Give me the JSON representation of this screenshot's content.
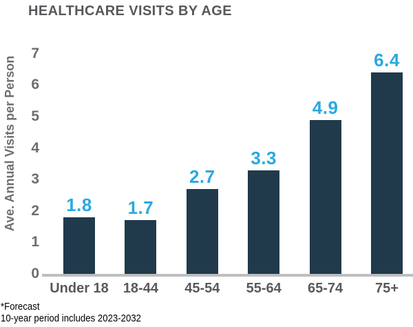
{
  "title": "HEALTHCARE VISITS BY AGE",
  "footnote": {
    "line1": "*Forecast",
    "line2": "10-year period includes 2023-2032"
  },
  "chart_data": {
    "type": "bar",
    "title": "HEALTHCARE VISITS BY AGE",
    "categories": [
      "Under 18",
      "18-44",
      "45-54",
      "55-64",
      "65-74",
      "75+"
    ],
    "values": [
      1.8,
      1.7,
      2.7,
      3.3,
      4.9,
      6.4
    ],
    "value_labels": [
      "1.8",
      "1.7",
      "2.7",
      "3.3",
      "4.9",
      "6.4"
    ],
    "xlabel": "",
    "ylabel": "Ave. Annual Visits per Person",
    "ylim": [
      0,
      7
    ],
    "yticks": [
      0,
      1,
      2,
      3,
      4,
      5,
      6,
      7
    ],
    "grid": false,
    "legend": "none",
    "colors": {
      "bar_fill": "#203A4B",
      "value_label": "#29A9E0",
      "title_text": "#57585B",
      "category_text": "#58595B",
      "tick_text": "#6D6E71",
      "axis_line": "#BCBEC0",
      "footnote_text": "#000000",
      "background": "#FFFFFF"
    }
  }
}
